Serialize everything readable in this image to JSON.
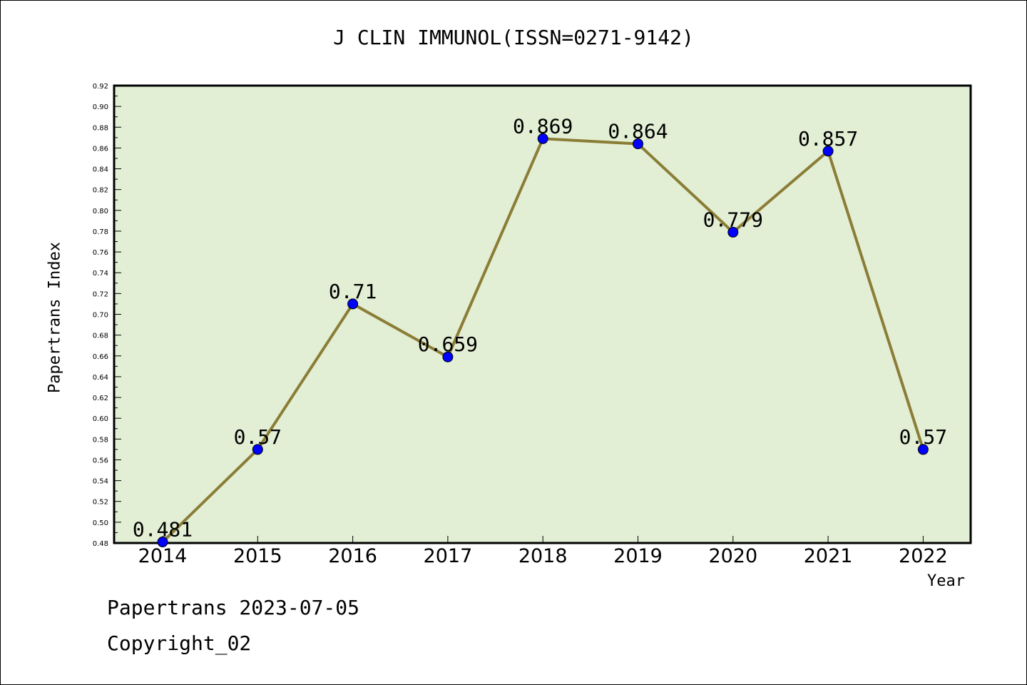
{
  "chart_data": {
    "type": "line",
    "title": "J CLIN IMMUNOL(ISSN=0271-9142)",
    "xlabel": "Year",
    "ylabel": "Papertrans Index",
    "categories": [
      "2014",
      "2015",
      "2016",
      "2017",
      "2018",
      "2019",
      "2020",
      "2021",
      "2022"
    ],
    "series": [
      {
        "values": [
          0.481,
          0.57,
          0.71,
          0.659,
          0.869,
          0.864,
          0.779,
          0.857,
          0.57
        ]
      }
    ],
    "data_labels": [
      "0.481",
      "0.57",
      "0.71",
      "0.659",
      "0.869",
      "0.864",
      "0.779",
      "0.857",
      "0.57"
    ],
    "ylim": [
      0.48,
      0.92
    ],
    "yticks": [
      "0.48",
      "0.50",
      "0.52",
      "0.54",
      "0.56",
      "0.58",
      "0.60",
      "0.62",
      "0.64",
      "0.66",
      "0.68",
      "0.70",
      "0.72",
      "0.74",
      "0.76",
      "0.78",
      "0.80",
      "0.82",
      "0.84",
      "0.86",
      "0.88",
      "0.90",
      "0.92"
    ],
    "grid": false,
    "colors": {
      "plot_background": "#e2efd5",
      "line": "#8b7d36",
      "marker": "#0000ff"
    }
  },
  "footer": {
    "date_line": "Papertrans 2023-07-05",
    "copyright": "Copyright_02"
  }
}
